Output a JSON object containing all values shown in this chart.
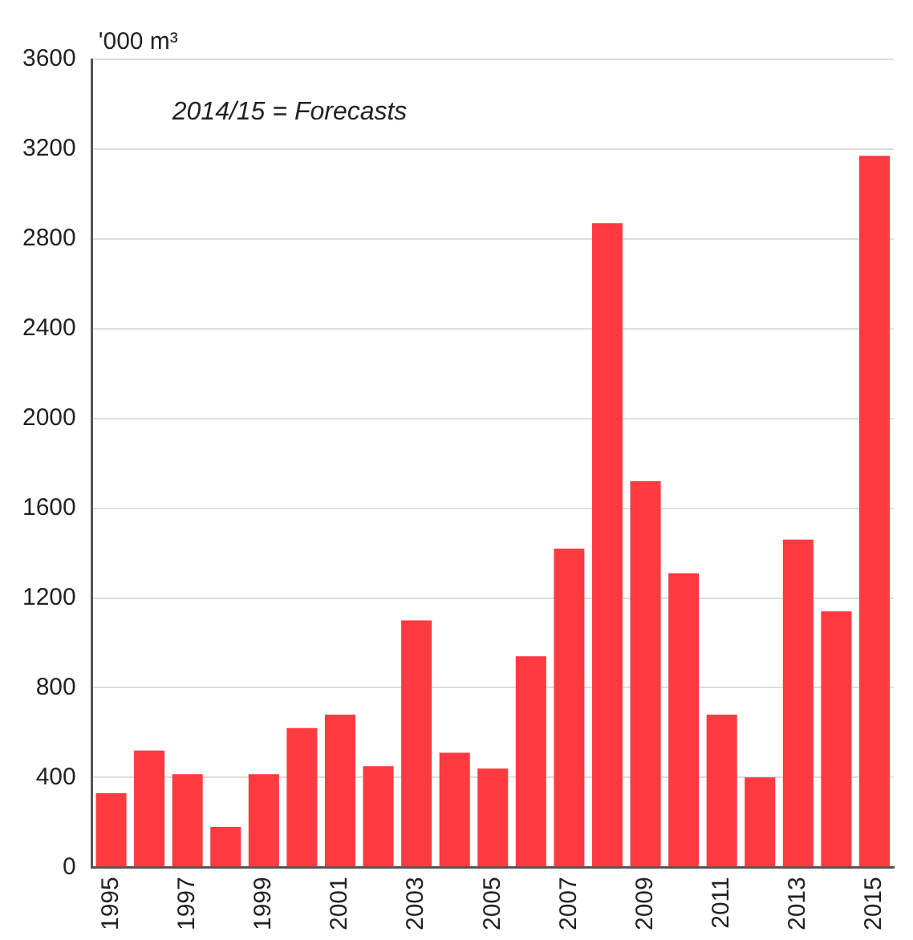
{
  "chart_data": {
    "type": "bar",
    "ylabel": "'000 m³",
    "annotations": [
      "2014/15 = Forecasts"
    ],
    "categories": [
      "1995",
      null,
      "1997",
      null,
      "1999",
      null,
      "2001",
      null,
      "2003",
      null,
      "2005",
      null,
      "2007",
      null,
      "2009",
      null,
      "2011",
      null,
      "2013",
      null,
      "2015"
    ],
    "values": [
      330,
      520,
      415,
      180,
      415,
      620,
      680,
      450,
      1100,
      510,
      440,
      940,
      1420,
      2870,
      1720,
      1310,
      680,
      400,
      1460,
      1140,
      3170
    ],
    "color": "#ff3a40",
    "ylim": [
      0,
      3600
    ],
    "yticks": [
      0,
      400,
      800,
      1200,
      1600,
      2000,
      2400,
      2800,
      3200,
      3600
    ],
    "grid": "y",
    "legend": false
  }
}
